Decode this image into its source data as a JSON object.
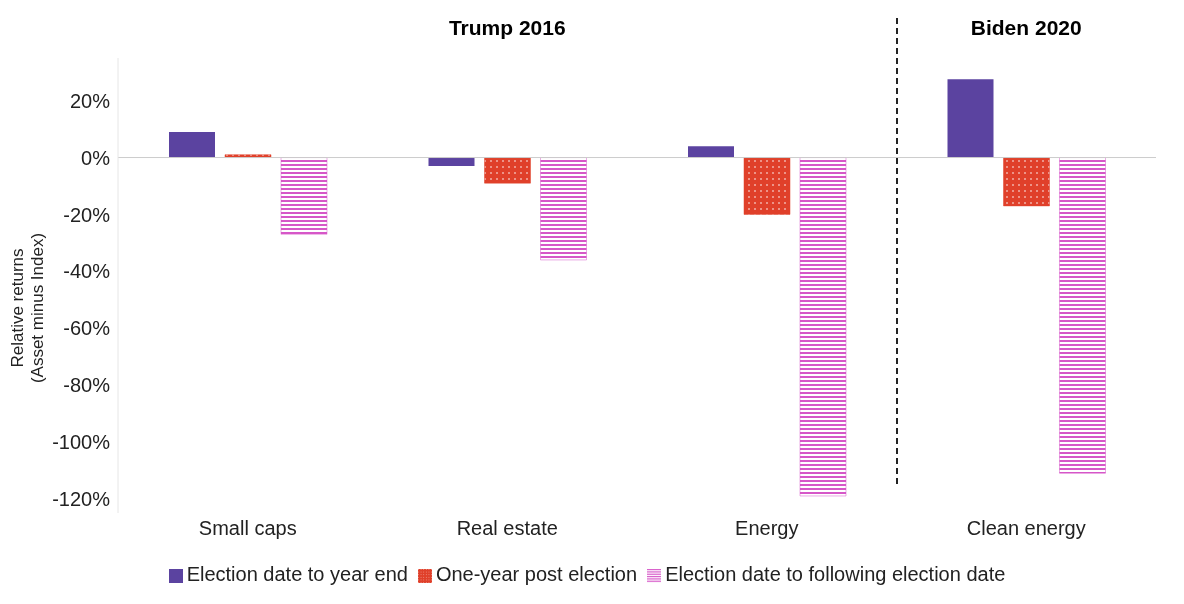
{
  "chart_data": {
    "type": "bar",
    "categories": [
      "Small caps",
      "Real estate",
      "Energy",
      "Clean energy"
    ],
    "ylabel": "Relative returns\n(Asset minus Index)",
    "annotations": [
      "Trump 2016",
      "Biden 2020"
    ],
    "series": [
      {
        "name": "Election date to year end",
        "color": "#5b43a0",
        "values": [
          9,
          -3,
          4,
          27.5
        ]
      },
      {
        "name": "One-year post election",
        "color": "#e0402a",
        "values": [
          1,
          -9,
          -20,
          -17
        ]
      },
      {
        "name": "Election date to following election date",
        "color": "#d657c8",
        "values": [
          -27,
          -36,
          -119,
          -111
        ]
      }
    ],
    "ylim": [
      -125,
      35
    ],
    "yticks": [
      {
        "value": -120,
        "label": "-120%"
      },
      {
        "value": -100,
        "label": "-100%"
      },
      {
        "value": -80,
        "label": "-80%"
      },
      {
        "value": -60,
        "label": "-60%"
      },
      {
        "value": -40,
        "label": "-40%"
      },
      {
        "value": -20,
        "label": "-20%"
      },
      {
        "value": 0,
        "label": "0%"
      },
      {
        "value": 20,
        "label": "20%"
      }
    ],
    "legend": "bottom"
  }
}
